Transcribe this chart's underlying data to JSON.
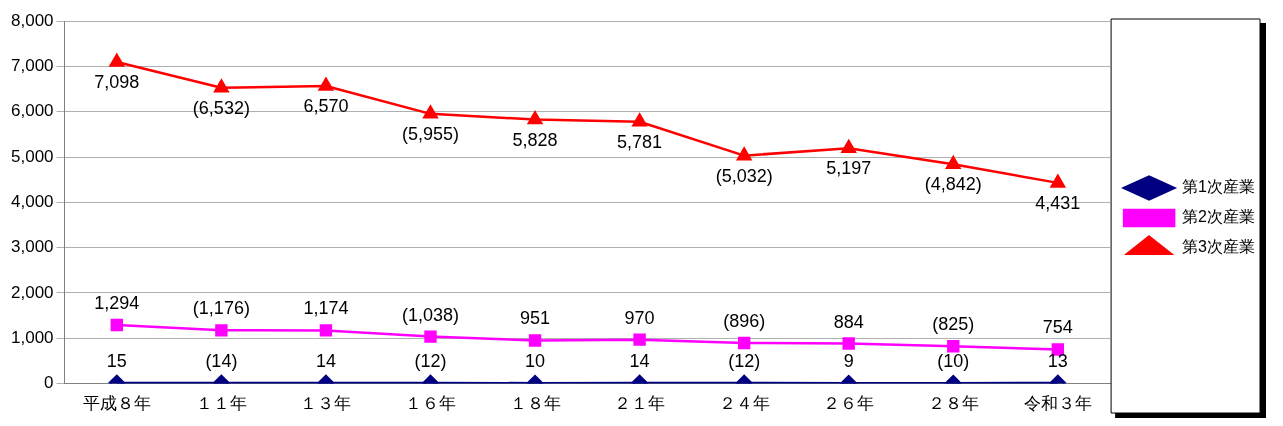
{
  "chart_data": {
    "type": "line",
    "categories": [
      "平成８年",
      "１１年",
      "１３年",
      "１６年",
      "１８年",
      "２１年",
      "２４年",
      "２６年",
      "２８年",
      "令和３年"
    ],
    "series": [
      {
        "name": "第1次産業",
        "color": "#000080",
        "marker": "diamond",
        "values": [
          15,
          14,
          14,
          12,
          10,
          14,
          12,
          9,
          10,
          13
        ],
        "value_labels": [
          "15",
          "(14)",
          "14",
          "(12)",
          "10",
          "14",
          "(12)",
          "9",
          "(10)",
          "13"
        ]
      },
      {
        "name": "第2次産業",
        "color": "#ff00ff",
        "marker": "square",
        "values": [
          1294,
          1176,
          1174,
          1038,
          951,
          970,
          896,
          884,
          825,
          754
        ],
        "value_labels": [
          "1,294",
          "(1,176)",
          "1,174",
          "(1,038)",
          "951",
          "970",
          "(896)",
          "884",
          "(825)",
          "754"
        ]
      },
      {
        "name": "第3次産業",
        "color": "#ff0000",
        "marker": "triangle",
        "values": [
          7098,
          6532,
          6570,
          5955,
          5828,
          5781,
          5032,
          5197,
          4842,
          4431
        ],
        "value_labels": [
          "7,098",
          "(6,532)",
          "6,570",
          "(5,955)",
          "5,828",
          "5,781",
          "(5,032)",
          "5,197",
          "(4,842)",
          "4,431"
        ]
      }
    ],
    "ylim": [
      0,
      8000
    ],
    "yticks": [
      {
        "value": 0,
        "label": "0"
      },
      {
        "value": 1000,
        "label": "1,000"
      },
      {
        "value": 2000,
        "label": "2,000"
      },
      {
        "value": 3000,
        "label": "3,000"
      },
      {
        "value": 4000,
        "label": "4,000"
      },
      {
        "value": 5000,
        "label": "5,000"
      },
      {
        "value": 6000,
        "label": "6,000"
      },
      {
        "value": 7000,
        "label": "7,000"
      },
      {
        "value": 8000,
        "label": "8,000"
      }
    ],
    "grid": "y",
    "legend": "right",
    "line_style": "solid"
  }
}
